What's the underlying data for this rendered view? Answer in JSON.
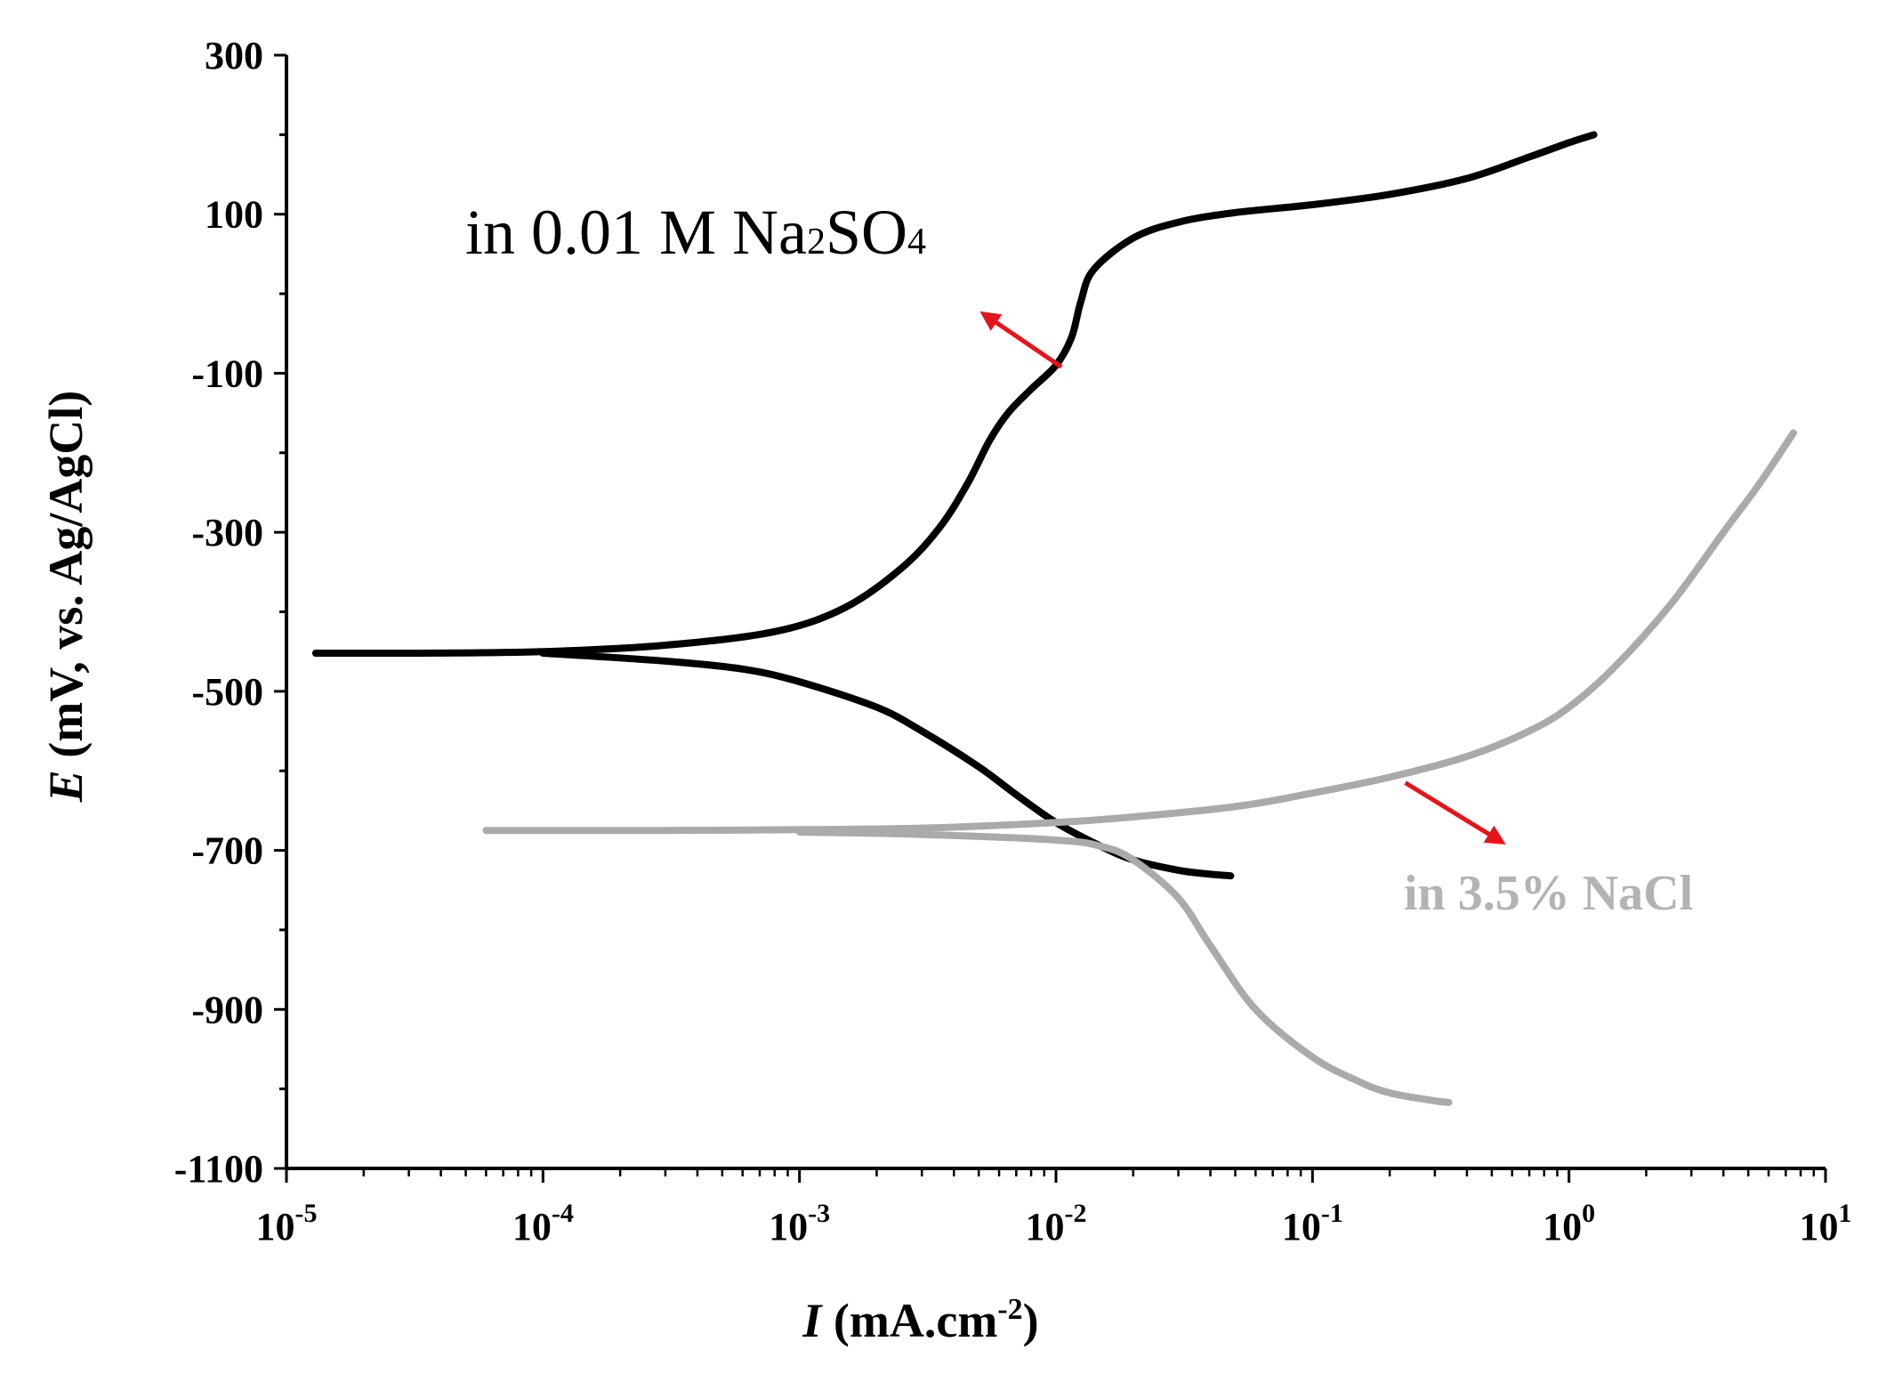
{
  "chart_data": {
    "type": "line",
    "title": "",
    "xscale": "log",
    "xlim": [
      1e-05,
      10
    ],
    "ylim": [
      -1100,
      300
    ],
    "y_major_ticks": [
      300,
      100,
      -100,
      -300,
      -500,
      -700,
      -900,
      -1100
    ],
    "y_tick_labels": [
      "300",
      "100",
      "-100",
      "-300",
      "-500",
      "-700",
      "-900",
      "-1100"
    ],
    "y_minor_step": 100,
    "x_ticks": [
      {
        "value": 1e-05,
        "base": "10",
        "exp": "-5"
      },
      {
        "value": 0.0001,
        "base": "10",
        "exp": "-4"
      },
      {
        "value": 0.001,
        "base": "10",
        "exp": "-3"
      },
      {
        "value": 0.01,
        "base": "10",
        "exp": "-2"
      },
      {
        "value": 0.1,
        "base": "10",
        "exp": "-1"
      },
      {
        "value": 1,
        "base": "10",
        "exp": "0"
      },
      {
        "value": 10,
        "base": "10",
        "exp": "1"
      }
    ],
    "xlabel": {
      "italic": "I",
      "text": " (mA.cm",
      "sup": "-2",
      "end": ")"
    },
    "ylabel": {
      "italic": "E",
      "text": " (mV, vs. Ag/AgCl)"
    },
    "grid": false,
    "series": [
      {
        "name": "in 0.01 M Na2SO4",
        "color": "#000000",
        "branches": [
          {
            "x": [
              1.3e-05,
              3e-05,
              0.0001,
              0.0003,
              0.0008,
              0.0015,
              0.0025,
              0.0035,
              0.0045,
              0.0055,
              0.0065,
              0.008,
              0.01,
              0.0115,
              0.0125,
              0.014,
              0.02,
              0.03,
              0.05,
              0.1,
              0.2,
              0.4,
              0.7,
              1.0,
              1.25
            ],
            "y": [
              -452,
              -452,
              -450,
              -442,
              -425,
              -395,
              -345,
              -295,
              -240,
              -185,
              -150,
              -120,
              -90,
              -55,
              -10,
              30,
              70,
              90,
              102,
              112,
              125,
              145,
              172,
              190,
              200
            ]
          },
          {
            "x": [
              0.0001,
              0.0003,
              0.0006,
              0.001,
              0.002,
              0.003,
              0.005,
              0.007,
              0.01,
              0.015,
              0.02,
              0.03,
              0.04,
              0.048
            ],
            "y": [
              -452,
              -462,
              -472,
              -488,
              -520,
              -550,
              -595,
              -630,
              -665,
              -695,
              -712,
              -725,
              -730,
              -732
            ]
          }
        ]
      },
      {
        "name": "in 3.5% NaCl",
        "color": "#aaaaaa",
        "branches": [
          {
            "x": [
              6e-05,
              0.0001,
              0.0003,
              0.001,
              0.003,
              0.01,
              0.02,
              0.05,
              0.1,
              0.2,
              0.4,
              0.7,
              1.0,
              1.5,
              2.5,
              4.0,
              5.5,
              7.5
            ],
            "y": [
              -675,
              -675,
              -675,
              -674,
              -672,
              -665,
              -658,
              -645,
              -628,
              -608,
              -582,
              -550,
              -520,
              -470,
              -390,
              -300,
              -240,
              -175
            ]
          },
          {
            "x": [
              0.001,
              0.003,
              0.01,
              0.015,
              0.02,
              0.03,
              0.04,
              0.06,
              0.1,
              0.15,
              0.2,
              0.3,
              0.34
            ],
            "y": [
              -677,
              -680,
              -687,
              -695,
              -712,
              -760,
              -820,
              -900,
              -960,
              -990,
              -1005,
              -1015,
              -1017
            ]
          }
        ]
      }
    ],
    "annotations": [
      {
        "text": "in 0.01 M Na",
        "sub1": "2",
        "mid": "SO",
        "sub2": "4",
        "color": "#000000"
      },
      {
        "text": "in 3.5% NaCl",
        "color": "#b3b3b3"
      }
    ],
    "arrows": [
      {
        "color": "#e8141b",
        "from": {
          "x": 0.0105,
          "y": -92
        },
        "to": {
          "x": 0.0052,
          "y": -25
        }
      },
      {
        "color": "#e8141b",
        "from": {
          "x": 0.23,
          "y": -615
        },
        "to": {
          "x": 0.55,
          "y": -690
        }
      }
    ]
  }
}
